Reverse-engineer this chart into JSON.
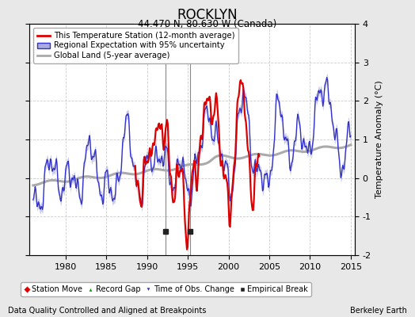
{
  "title": "ROCKLYN",
  "subtitle": "44.470 N, 80.630 W (Canada)",
  "ylabel": "Temperature Anomaly (°C)",
  "footer_left": "Data Quality Controlled and Aligned at Breakpoints",
  "footer_right": "Berkeley Earth",
  "xlim": [
    1975.5,
    2015.5
  ],
  "ylim": [
    -2,
    4
  ],
  "yticks": [
    -2,
    -1,
    0,
    1,
    2,
    3,
    4
  ],
  "xticks": [
    1980,
    1985,
    1990,
    1995,
    2000,
    2005,
    2010,
    2015
  ],
  "fig_bg_color": "#e8e8e8",
  "plot_bg_color": "#ffffff",
  "grid_color": "#cccccc",
  "regional_color": "#3333cc",
  "regional_fill_color": "#aaaadd",
  "station_color": "#dd0000",
  "global_color": "#aaaaaa",
  "empirical_break_years": [
    1992.3,
    1995.3
  ],
  "empirical_break_line_color": "#888888",
  "legend_items": [
    {
      "label": "This Temperature Station (12-month average)",
      "color": "#dd0000",
      "lw": 2
    },
    {
      "label": "Regional Expectation with 95% uncertainty",
      "color": "#3333cc",
      "fill": "#aaaadd"
    },
    {
      "label": "Global Land (5-year average)",
      "color": "#aaaaaa",
      "lw": 2
    }
  ],
  "marker_legend": [
    {
      "marker": "D",
      "color": "#dd0000",
      "label": "Station Move"
    },
    {
      "marker": "^",
      "color": "#009900",
      "label": "Record Gap"
    },
    {
      "marker": "v",
      "color": "#3333cc",
      "label": "Time of Obs. Change"
    },
    {
      "marker": "s",
      "color": "#222222",
      "label": "Empirical Break"
    }
  ]
}
